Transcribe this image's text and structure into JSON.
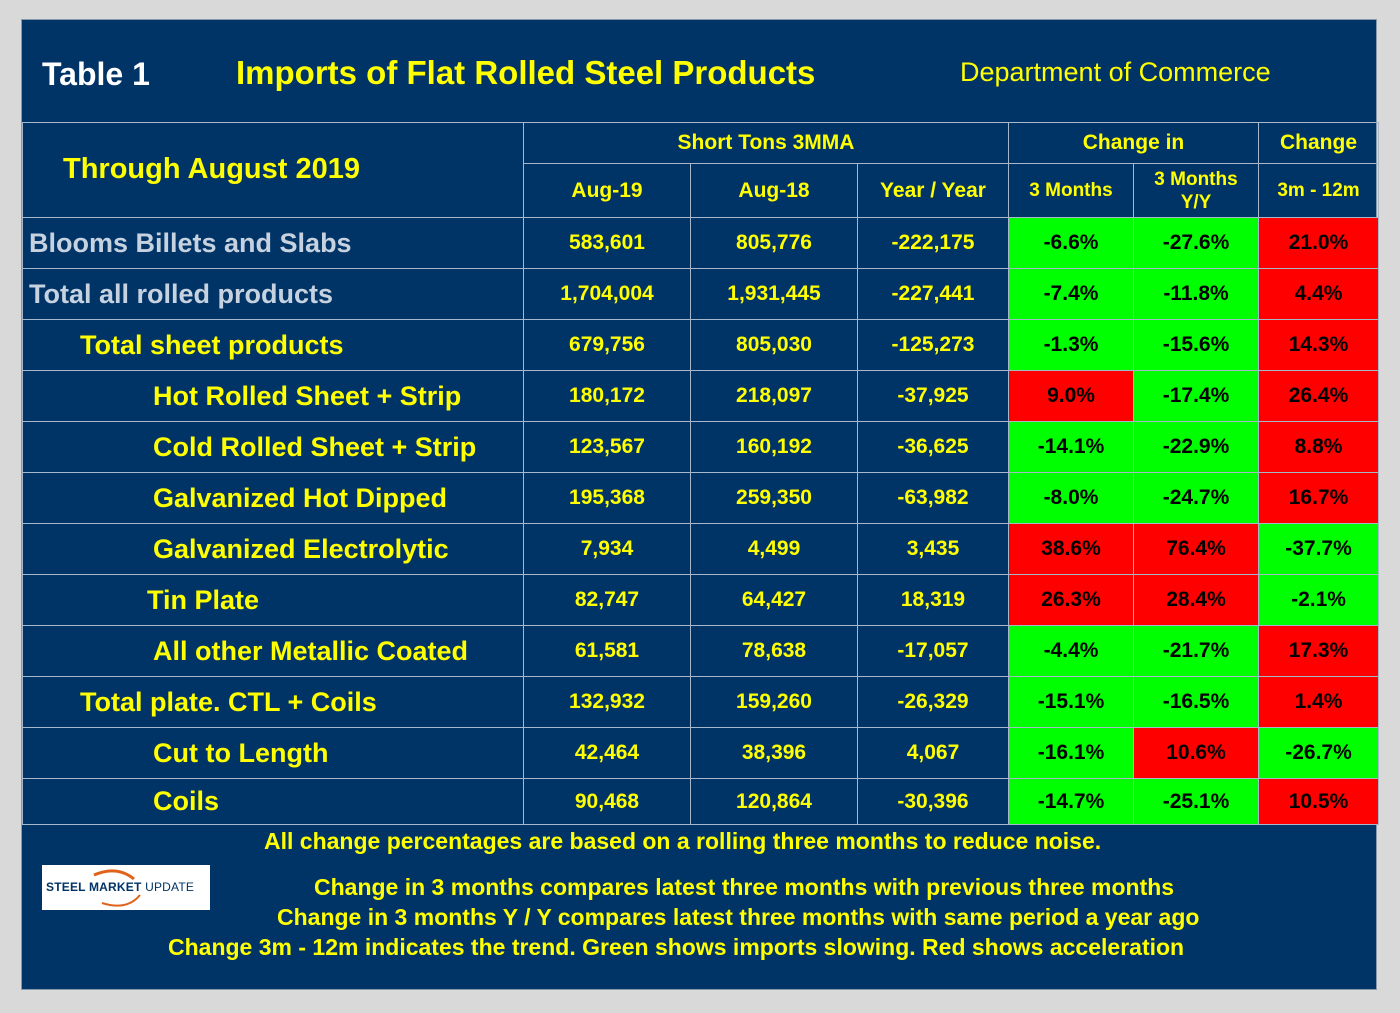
{
  "header": {
    "table_label": "Table 1",
    "title": "Imports of Flat Rolled Steel Products",
    "source": "Department of Commerce"
  },
  "columns": {
    "through": "Through August 2019",
    "short_tons": "Short Tons 3MMA",
    "change_in": "Change in",
    "change": "Change",
    "aug19": "Aug-19",
    "aug18": "Aug-18",
    "yoy": "Year / Year",
    "three_months": "3 Months",
    "three_months_yy": "3 Months Y/Y",
    "three_twelve": "3m - 12m"
  },
  "rows": [
    {
      "label": "Blooms Billets and Slabs",
      "aug19": "583,601",
      "aug18": "805,776",
      "yoy": "-222,175",
      "yoy_sign": "neg",
      "m3": "-6.6%",
      "m3_color": "green",
      "m3yy": "-27.6%",
      "m3yy_color": "green",
      "c312": "21.0%",
      "c312_color": "red"
    },
    {
      "label": "Total all rolled products",
      "aug19": "1,704,004",
      "aug18": "1,931,445",
      "yoy": "-227,441",
      "yoy_sign": "neg",
      "m3": "-7.4%",
      "m3_color": "green",
      "m3yy": "-11.8%",
      "m3yy_color": "green",
      "c312": "4.4%",
      "c312_color": "red"
    },
    {
      "label": "Total sheet products",
      "aug19": "679,756",
      "aug18": "805,030",
      "yoy": "-125,273",
      "yoy_sign": "neg",
      "m3": "-1.3%",
      "m3_color": "green",
      "m3yy": "-15.6%",
      "m3yy_color": "green",
      "c312": "14.3%",
      "c312_color": "red"
    },
    {
      "label": "Hot Rolled Sheet + Strip",
      "aug19": "180,172",
      "aug18": "218,097",
      "yoy": "-37,925",
      "yoy_sign": "neg",
      "m3": "9.0%",
      "m3_color": "red",
      "m3yy": "-17.4%",
      "m3yy_color": "green",
      "c312": "26.4%",
      "c312_color": "red"
    },
    {
      "label": "Cold Rolled Sheet + Strip",
      "aug19": "123,567",
      "aug18": "160,192",
      "yoy": "-36,625",
      "yoy_sign": "neg",
      "m3": "-14.1%",
      "m3_color": "green",
      "m3yy": "-22.9%",
      "m3yy_color": "green",
      "c312": "8.8%",
      "c312_color": "red"
    },
    {
      "label": "Galvanized Hot Dipped",
      "aug19": "195,368",
      "aug18": "259,350",
      "yoy": "-63,982",
      "yoy_sign": "neg",
      "m3": "-8.0%",
      "m3_color": "green",
      "m3yy": "-24.7%",
      "m3yy_color": "green",
      "c312": "16.7%",
      "c312_color": "red"
    },
    {
      "label": "Galvanized Electrolytic",
      "aug19": "7,934",
      "aug18": "4,499",
      "yoy": "3,435",
      "yoy_sign": "pos",
      "m3": "38.6%",
      "m3_color": "red",
      "m3yy": "76.4%",
      "m3yy_color": "red",
      "c312": "-37.7%",
      "c312_color": "green"
    },
    {
      "label": "Tin Plate",
      "aug19": "82,747",
      "aug18": "64,427",
      "yoy": "18,319",
      "yoy_sign": "pos",
      "m3": "26.3%",
      "m3_color": "red",
      "m3yy": "28.4%",
      "m3yy_color": "red",
      "c312": "-2.1%",
      "c312_color": "green"
    },
    {
      "label": "All other Metallic Coated",
      "aug19": "61,581",
      "aug18": "78,638",
      "yoy": "-17,057",
      "yoy_sign": "neg",
      "m3": "-4.4%",
      "m3_color": "green",
      "m3yy": "-21.7%",
      "m3yy_color": "green",
      "c312": "17.3%",
      "c312_color": "red"
    },
    {
      "label": "Total plate. CTL + Coils",
      "aug19": "132,932",
      "aug18": "159,260",
      "yoy": "-26,329",
      "yoy_sign": "neg",
      "m3": "-15.1%",
      "m3_color": "green",
      "m3yy": "-16.5%",
      "m3yy_color": "green",
      "c312": "1.4%",
      "c312_color": "red"
    },
    {
      "label": "Cut to Length",
      "aug19": "42,464",
      "aug18": "38,396",
      "yoy": "4,067",
      "yoy_sign": "pos",
      "m3": "-16.1%",
      "m3_color": "green",
      "m3yy": "10.6%",
      "m3yy_color": "red",
      "c312": "-26.7%",
      "c312_color": "green"
    },
    {
      "label": "Coils",
      "aug19": "90,468",
      "aug18": "120,864",
      "yoy": "-30,396",
      "yoy_sign": "neg",
      "m3": "-14.7%",
      "m3_color": "green",
      "m3yy": "-25.1%",
      "m3yy_color": "green",
      "c312": "10.5%",
      "c312_color": "red"
    }
  ],
  "notes": {
    "line1": "All change percentages are based on a rolling three months to reduce noise.",
    "line2": "Change in 3 months compares latest three months with previous three months",
    "line3": "Change in 3 months  Y / Y compares latest three months with same period a year ago",
    "line4": "Change 3m - 12m indicates the trend. Green shows imports slowing. Red shows acceleration"
  },
  "logo": {
    "bold": "STEEL MARKET",
    "light": "UPDATE"
  }
}
